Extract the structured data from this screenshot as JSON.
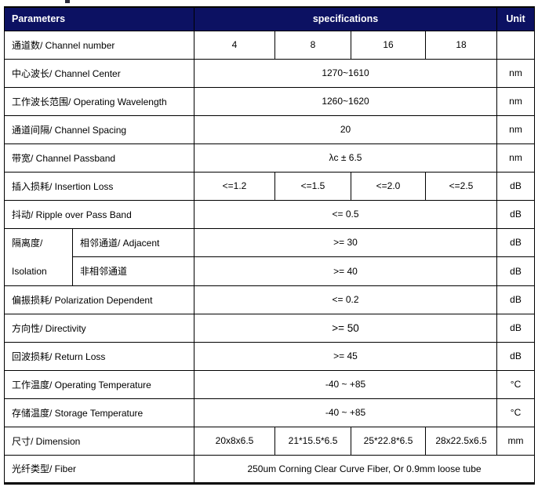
{
  "table": {
    "header": {
      "parameters": "Parameters",
      "specifications": "specifications",
      "unit": "Unit"
    },
    "colors": {
      "header_bg": "#0c1162",
      "header_text": "#ffffff",
      "border": "#000000"
    },
    "rows": [
      {
        "cells": [
          {
            "t": "通道数/ Channel number",
            "cls": "param",
            "cs": 2,
            "name": "parameter-cell"
          },
          {
            "t": "4",
            "cls": "val",
            "name": "value-cell"
          },
          {
            "t": "8",
            "cls": "val",
            "name": "value-cell"
          },
          {
            "t": "16",
            "cls": "val",
            "name": "value-cell"
          },
          {
            "t": "18",
            "cls": "val",
            "name": "value-cell"
          },
          {
            "t": "",
            "cls": "unit",
            "name": "unit-cell"
          }
        ]
      },
      {
        "cells": [
          {
            "t": "中心波长/ Channel Center",
            "cls": "param",
            "cs": 2,
            "name": "parameter-cell"
          },
          {
            "t": "1270~1610",
            "cls": "val",
            "cs": 4,
            "name": "value-cell"
          },
          {
            "t": "nm",
            "cls": "unit",
            "name": "unit-cell"
          }
        ]
      },
      {
        "cells": [
          {
            "t": "工作波长范围/ Operating Wavelength",
            "cls": "param",
            "cs": 2,
            "name": "parameter-cell"
          },
          {
            "t": "1260~1620",
            "cls": "val",
            "cs": 4,
            "name": "value-cell"
          },
          {
            "t": "nm",
            "cls": "unit",
            "name": "unit-cell"
          }
        ]
      },
      {
        "cells": [
          {
            "t": "通道间隔/ Channel Spacing",
            "cls": "param",
            "cs": 2,
            "name": "parameter-cell"
          },
          {
            "t": "20",
            "cls": "val",
            "cs": 4,
            "name": "value-cell"
          },
          {
            "t": "nm",
            "cls": "unit",
            "name": "unit-cell"
          }
        ]
      },
      {
        "cells": [
          {
            "t": "带宽/ Channel Passband",
            "cls": "param",
            "cs": 2,
            "name": "parameter-cell"
          },
          {
            "t": "λc ± 6.5",
            "cls": "val",
            "cs": 4,
            "name": "value-cell"
          },
          {
            "t": "nm",
            "cls": "unit",
            "name": "unit-cell"
          }
        ]
      },
      {
        "cells": [
          {
            "t": "插入损耗/ Insertion Loss",
            "cls": "param",
            "cs": 2,
            "name": "parameter-cell"
          },
          {
            "t": "<=1.2",
            "cls": "val",
            "name": "value-cell"
          },
          {
            "t": "<=1.5",
            "cls": "val",
            "name": "value-cell"
          },
          {
            "t": "<=2.0",
            "cls": "val",
            "name": "value-cell"
          },
          {
            "t": "<=2.5",
            "cls": "val",
            "name": "value-cell"
          },
          {
            "t": "dB",
            "cls": "unit",
            "name": "unit-cell"
          }
        ]
      },
      {
        "cells": [
          {
            "t": "抖动/ Ripple over Pass Band",
            "cls": "param",
            "cs": 2,
            "name": "parameter-cell"
          },
          {
            "t": "<= 0.5",
            "cls": "val",
            "cs": 4,
            "name": "value-cell"
          },
          {
            "t": "dB",
            "cls": "unit",
            "name": "unit-cell"
          }
        ]
      },
      {
        "cells": [
          {
            "lines": [
              "隔离度/",
              "Isolation"
            ],
            "cls": "group",
            "rs": 2,
            "name": "parameter-group-cell"
          },
          {
            "t": "相邻通道/ Adjacent",
            "cls": "sub",
            "name": "sub-parameter-cell"
          },
          {
            "t": ">= 30",
            "cls": "val",
            "cs": 4,
            "name": "value-cell"
          },
          {
            "t": "dB",
            "cls": "unit",
            "name": "unit-cell"
          }
        ]
      },
      {
        "cells": [
          {
            "t": "非相邻通道",
            "cls": "sub",
            "name": "sub-parameter-cell"
          },
          {
            "t": ">= 40",
            "cls": "val",
            "cs": 4,
            "name": "value-cell"
          },
          {
            "t": "dB",
            "cls": "unit",
            "name": "unit-cell"
          }
        ]
      },
      {
        "cells": [
          {
            "t": "偏振损耗/ Polarization Dependent",
            "cls": "param",
            "cs": 2,
            "name": "parameter-cell"
          },
          {
            "t": "<= 0.2",
            "cls": "val",
            "cs": 4,
            "name": "value-cell"
          },
          {
            "t": "dB",
            "cls": "unit",
            "name": "unit-cell"
          }
        ]
      },
      {
        "cells": [
          {
            "t": "方向性/ Directivity",
            "cls": "param",
            "cs": 2,
            "name": "parameter-cell"
          },
          {
            "t": ">= 50",
            "cls": "val big",
            "cs": 4,
            "name": "value-cell"
          },
          {
            "t": "dB",
            "cls": "unit",
            "name": "unit-cell"
          }
        ]
      },
      {
        "cells": [
          {
            "t": "回波损耗/ Return Loss",
            "cls": "param",
            "cs": 2,
            "name": "parameter-cell"
          },
          {
            "t": ">= 45",
            "cls": "val",
            "cs": 4,
            "name": "value-cell"
          },
          {
            "t": "dB",
            "cls": "unit",
            "name": "unit-cell"
          }
        ]
      },
      {
        "cells": [
          {
            "t": "工作温度/ Operating Temperature",
            "cls": "param",
            "cs": 2,
            "name": "parameter-cell"
          },
          {
            "t": "-40 ~ +85",
            "cls": "val",
            "cs": 4,
            "name": "value-cell"
          },
          {
            "t": "°C",
            "cls": "unit",
            "name": "unit-cell"
          }
        ]
      },
      {
        "cells": [
          {
            "t": "存储温度/ Storage Temperature",
            "cls": "param",
            "cs": 2,
            "name": "parameter-cell"
          },
          {
            "t": "-40 ~ +85",
            "cls": "val",
            "cs": 4,
            "name": "value-cell"
          },
          {
            "t": "°C",
            "cls": "unit",
            "name": "unit-cell"
          }
        ]
      },
      {
        "cells": [
          {
            "t": "尺寸/ Dimension",
            "cls": "param",
            "cs": 2,
            "name": "parameter-cell"
          },
          {
            "t": "20x8x6.5",
            "cls": "val",
            "name": "value-cell"
          },
          {
            "t": "21*15.5*6.5",
            "cls": "val",
            "name": "value-cell"
          },
          {
            "t": "25*22.8*6.5",
            "cls": "val",
            "name": "value-cell"
          },
          {
            "t": "28x22.5x6.5",
            "cls": "val",
            "name": "value-cell"
          },
          {
            "t": "mm",
            "cls": "unit",
            "name": "unit-cell"
          }
        ]
      },
      {
        "cells": [
          {
            "t": "光纤类型/ Fiber",
            "cls": "param",
            "cs": 2,
            "name": "parameter-cell"
          },
          {
            "t": "250um Corning Clear Curve Fiber, Or 0.9mm loose tube",
            "cls": "val",
            "cs": 5,
            "name": "value-cell"
          }
        ]
      }
    ]
  }
}
